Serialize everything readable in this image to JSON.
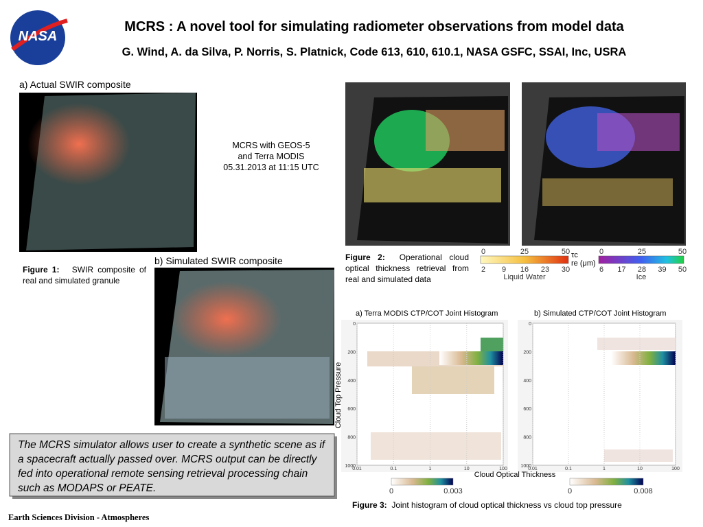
{
  "header": {
    "logo": "NASA",
    "title": "MCRS : A novel tool for simulating radiometer observations from model data",
    "authors": "G. Wind, A. da Silva, P. Norris, S. Platnick, Code 613, 610, 610.1, NASA GSFC, SSAI, Inc, USRA"
  },
  "figure1": {
    "panel_a": "a) Actual SWIR composite",
    "panel_b": "b) Simulated SWIR composite",
    "label": "Figure 1:",
    "caption": "SWIR composite of real and simulated granule"
  },
  "note": [
    "MCRS with GEOS-5",
    "and Terra MODIS",
    "05.31.2013 at 11:15 UTC"
  ],
  "figure2": {
    "label": "Figure 2:",
    "caption": "Operational cloud optical thickness retrieval from real and simulated data",
    "tau_symbol": "τc",
    "re_symbol": "re (μm)",
    "liquid": {
      "top_ticks": [
        0,
        25,
        50
      ],
      "bottom_ticks": [
        2,
        9,
        16,
        23,
        30
      ],
      "name": "Liquid Water"
    },
    "ice": {
      "top_ticks": [
        0,
        25,
        50
      ],
      "bottom_ticks": [
        6,
        17,
        28,
        39,
        50
      ],
      "name": "Ice"
    }
  },
  "figure3": {
    "panel_a": "a) Terra MODIS CTP/COT Joint Histogram",
    "panel_b": "b) Simulated CTP/COT Joint Histogram",
    "y_label": "Cloud Top Pressure",
    "x_label": "Cloud Optical Thickness",
    "yticks": [
      0,
      200,
      400,
      600,
      800,
      1000
    ],
    "xticks": [
      0.01,
      0.1,
      1,
      10,
      100
    ],
    "colorbar_a": [
      0,
      0.003
    ],
    "colorbar_b": [
      0,
      0.008
    ],
    "label": "Figure 3:",
    "caption": "Joint histogram of cloud optical thickness vs cloud top pressure"
  },
  "summary": "The MCRS simulator allows user to create a synthetic scene as if a spacecraft actually passed over. MCRS output can be directly fed into operational remote sensing retrieval processing chain such as MODAPS or PEATE.",
  "footer": "Earth Sciences Division - Atmospheres"
}
